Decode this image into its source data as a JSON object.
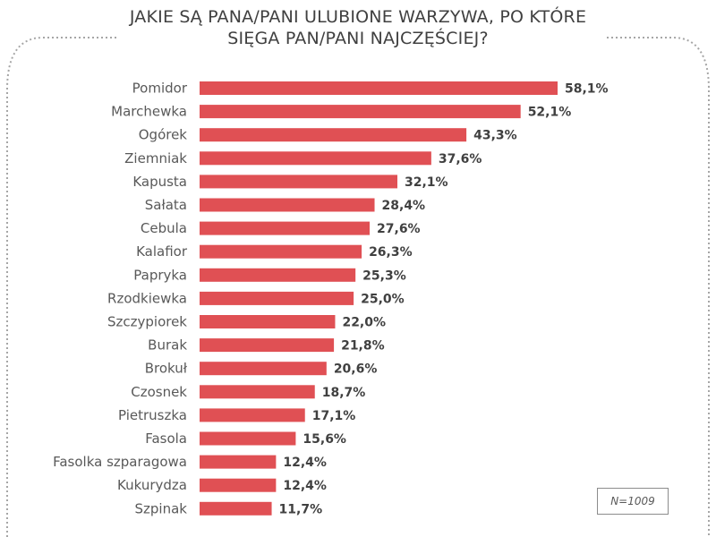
{
  "title": {
    "line1": "JAKIE SĄ PANA/PANI ULUBIONE WARZYWA, PO KTÓRE",
    "line2": "SIĘGA PAN/PANI NAJCZĘŚCIEJ?"
  },
  "sample_note": "N=1009",
  "colors": {
    "bar": "#e05054",
    "frame": "#a6a6a6"
  },
  "chart_data": {
    "type": "bar",
    "orientation": "horizontal",
    "title": "JAKIE SĄ PANA/PANI ULUBIONE WARZYWA, PO KTÓRE SIĘGA PAN/PANI NAJCZĘŚCIEJ?",
    "categories": [
      "Pomidor",
      "Marchewka",
      "Ogórek",
      "Ziemniak",
      "Kapusta",
      "Sałata",
      "Cebula",
      "Kalafior",
      "Papryka",
      "Rzodkiewka",
      "Szczypiorek",
      "Burak",
      "Brokuł",
      "Czosnek",
      "Pietruszka",
      "Fasola",
      "Fasolka szparagowa",
      "Kukurydza",
      "Szpinak"
    ],
    "values": [
      58.1,
      52.1,
      43.3,
      37.6,
      32.1,
      28.4,
      27.6,
      26.3,
      25.3,
      25.0,
      22.0,
      21.8,
      20.6,
      18.7,
      17.1,
      15.6,
      12.4,
      12.4,
      11.7
    ],
    "labels": [
      "58,1%",
      "52,1%",
      "43,3%",
      "37,6%",
      "32,1%",
      "28,4%",
      "27,6%",
      "26,3%",
      "25,3%",
      "25,0%",
      "22,0%",
      "21,8%",
      "20,6%",
      "18,7%",
      "17,1%",
      "15,6%",
      "12,4%",
      "12,4%",
      "11,7%"
    ],
    "xlim": [
      0,
      58.1
    ],
    "unit": "%",
    "grid": false,
    "legend": "none"
  }
}
